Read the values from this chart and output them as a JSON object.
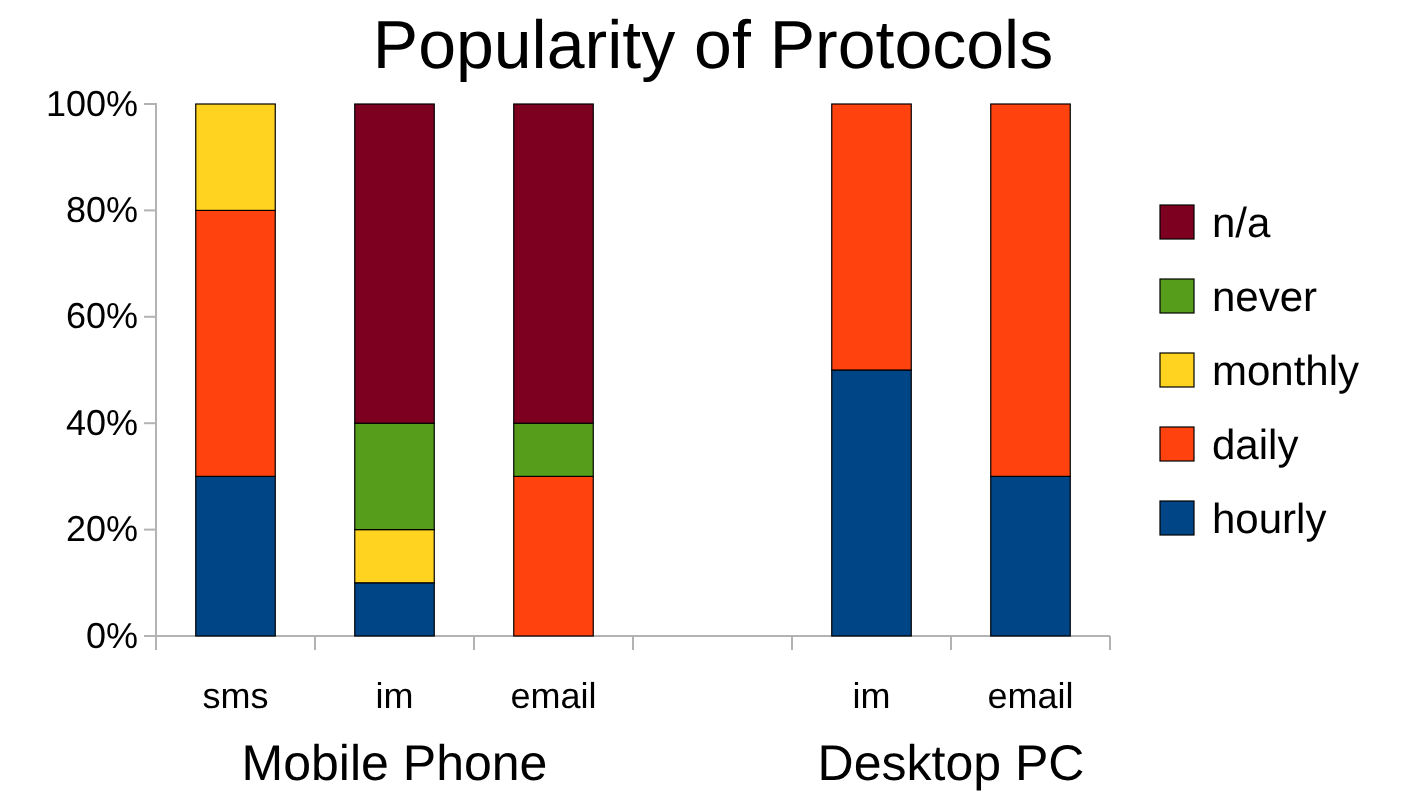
{
  "chart_data": {
    "type": "bar",
    "title": "Popularity of Protocols",
    "stacked": true,
    "legend": "right",
    "grid": false,
    "categories": [
      "sms",
      "im",
      "email",
      null,
      "im",
      "email"
    ],
    "annotations": [
      "Mobile Phone",
      "Desktop PC"
    ],
    "ylim": [
      0,
      100
    ],
    "yticks": [
      {
        "value": 0,
        "label": "0%"
      },
      {
        "value": 20,
        "label": "20%"
      },
      {
        "value": 40,
        "label": "40%"
      },
      {
        "value": 60,
        "label": "60%"
      },
      {
        "value": 80,
        "label": "80%"
      },
      {
        "value": 100,
        "label": "100%"
      }
    ],
    "series": [
      {
        "name": "hourly",
        "color": "#004586",
        "values": [
          30,
          10,
          0,
          null,
          50,
          30
        ]
      },
      {
        "name": "daily",
        "color": "#ff420e",
        "values": [
          50,
          0,
          30,
          null,
          50,
          70
        ]
      },
      {
        "name": "monthly",
        "color": "#ffd320",
        "values": [
          20,
          10,
          0,
          null,
          0,
          0
        ]
      },
      {
        "name": "never",
        "color": "#579d1c",
        "values": [
          0,
          20,
          10,
          null,
          0,
          0
        ]
      },
      {
        "name": "n/a",
        "color": "#7e0021",
        "values": [
          0,
          60,
          60,
          null,
          0,
          0
        ]
      }
    ]
  }
}
